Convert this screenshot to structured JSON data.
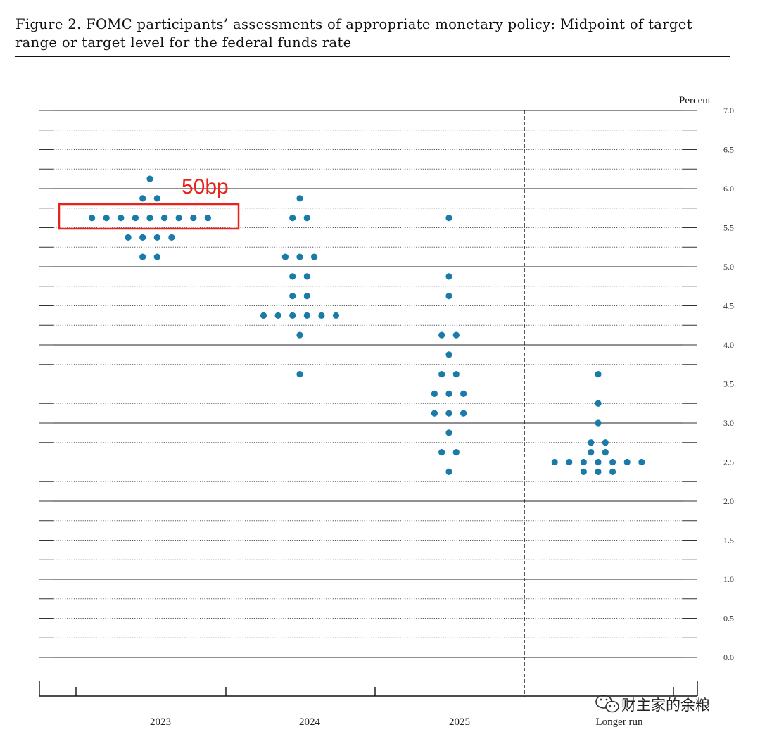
{
  "figure": {
    "title": "Figure 2.  FOMC participants’ assessments of appropriate monetary policy: Midpoint of target range or target level for the federal funds rate"
  },
  "chart_data": {
    "type": "scatter",
    "title": "FOMC participants’ assessments of appropriate monetary policy: Midpoint of target range or target level for the federal funds rate",
    "ylabel": "Percent",
    "ylim": [
      0.0,
      7.0
    ],
    "y_ticks": [
      "7.0",
      "6.5",
      "6.0",
      "5.5",
      "5.0",
      "4.5",
      "4.0",
      "3.5",
      "3.0",
      "2.5",
      "2.0",
      "1.5",
      "1.0",
      "0.5",
      "0.0"
    ],
    "categories": [
      "2023",
      "2024",
      "2025",
      "Longer run"
    ],
    "grid": true,
    "separator_before": "Longer run",
    "dot_color": "#1a7ba8",
    "annotation": {
      "text": "50bp",
      "box_color": "#e8231c"
    },
    "dots": [
      {
        "category": "2023",
        "levels": [
          {
            "rate": 6.125,
            "count": 1
          },
          {
            "rate": 5.875,
            "count": 2
          },
          {
            "rate": 5.625,
            "count": 9
          },
          {
            "rate": 5.375,
            "count": 4
          },
          {
            "rate": 5.125,
            "count": 2
          }
        ]
      },
      {
        "category": "2024",
        "levels": [
          {
            "rate": 5.875,
            "count": 1
          },
          {
            "rate": 5.625,
            "count": 2
          },
          {
            "rate": 5.125,
            "count": 3
          },
          {
            "rate": 4.875,
            "count": 2
          },
          {
            "rate": 4.625,
            "count": 2
          },
          {
            "rate": 4.375,
            "count": 6
          },
          {
            "rate": 4.125,
            "count": 1
          },
          {
            "rate": 3.625,
            "count": 1
          }
        ]
      },
      {
        "category": "2025",
        "levels": [
          {
            "rate": 5.625,
            "count": 1
          },
          {
            "rate": 4.875,
            "count": 1
          },
          {
            "rate": 4.625,
            "count": 1
          },
          {
            "rate": 4.125,
            "count": 2
          },
          {
            "rate": 3.875,
            "count": 1
          },
          {
            "rate": 3.625,
            "count": 2
          },
          {
            "rate": 3.375,
            "count": 3
          },
          {
            "rate": 3.125,
            "count": 3
          },
          {
            "rate": 2.875,
            "count": 1
          },
          {
            "rate": 2.625,
            "count": 2
          },
          {
            "rate": 2.375,
            "count": 1
          }
        ]
      },
      {
        "category": "Longer run",
        "levels": [
          {
            "rate": 3.625,
            "count": 1
          },
          {
            "rate": 3.25,
            "count": 1
          },
          {
            "rate": 3.0,
            "count": 1
          },
          {
            "rate": 2.75,
            "count": 2
          },
          {
            "rate": 2.625,
            "count": 2
          },
          {
            "rate": 2.5,
            "count": 7
          },
          {
            "rate": 2.375,
            "count": 3
          }
        ]
      }
    ]
  },
  "watermark": {
    "text": "财主家的余粮",
    "icon": "wechat-icon"
  }
}
